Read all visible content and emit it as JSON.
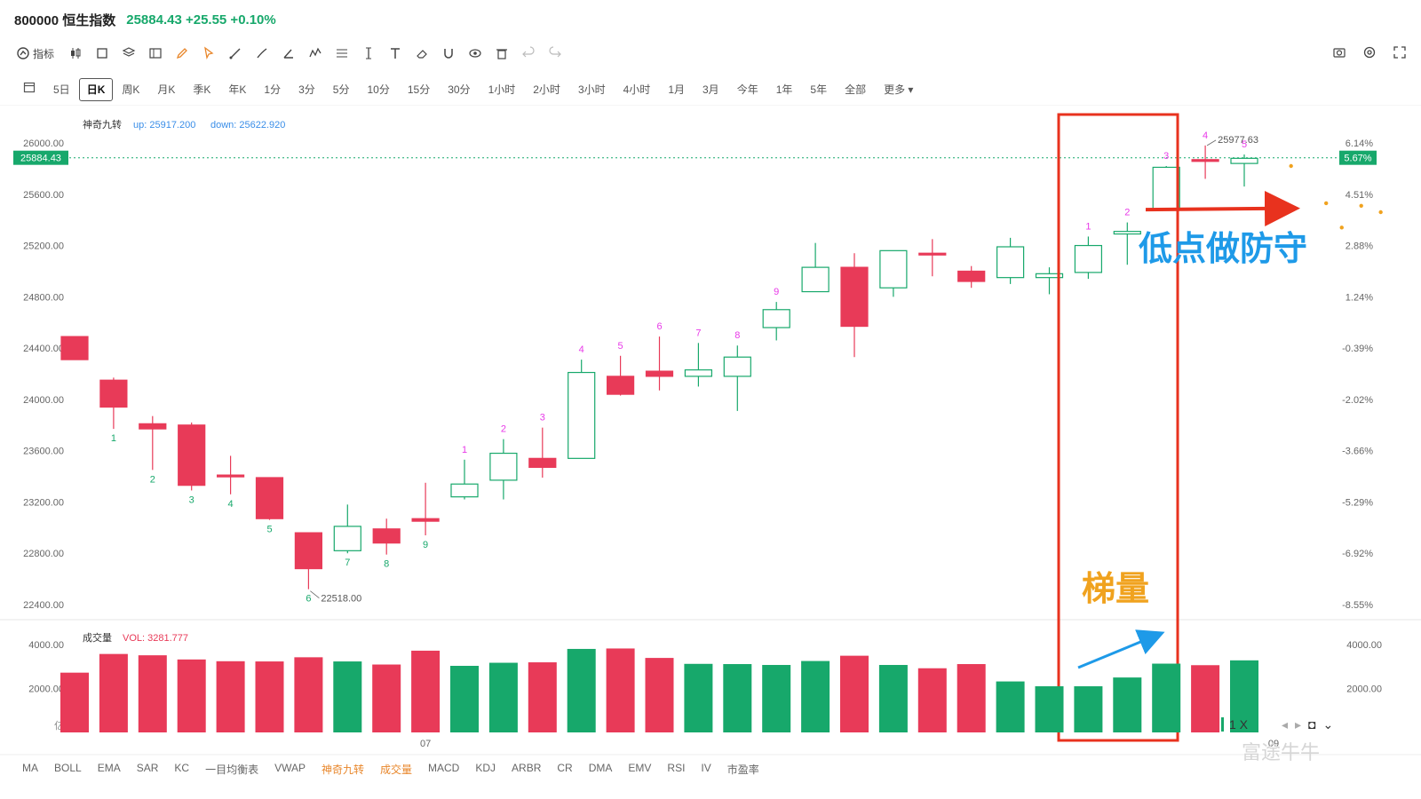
{
  "header": {
    "code_name": "800000 恒生指数",
    "price_change": "25884.43 +25.55 +0.10%"
  },
  "toolbar": {
    "indicator_label": "指标",
    "tools": [
      "candlestick-icon",
      "square-icon",
      "layers-icon",
      "layout-icon",
      "pencil-icon",
      "cursor-icon",
      "line-tool-icon",
      "brush-icon",
      "angle-tool-icon",
      "wave-tool-icon",
      "fib-tool-icon",
      "measure-tool-icon",
      "text-tool-icon",
      "eraser-icon",
      "magnet-icon",
      "eye-icon",
      "trash-icon",
      "undo-icon",
      "redo-icon"
    ],
    "right_tools": [
      "camera-icon",
      "settings-icon",
      "expand-icon"
    ]
  },
  "periods": [
    "5日",
    "日K",
    "周K",
    "月K",
    "季K",
    "年K",
    "1分",
    "3分",
    "5分",
    "10分",
    "15分",
    "30分",
    "1小时",
    "2小时",
    "3小时",
    "4小时",
    "1月",
    "3月",
    "今年",
    "1年",
    "5年",
    "全部",
    "更多"
  ],
  "active_period": "日K",
  "colors": {
    "up": "#17a86b",
    "down": "#e83a58",
    "magic": "#e83ae8",
    "red_box": "#e8321e",
    "blue_text": "#1e9ae8",
    "orange_text": "#f0a21e",
    "price_tag": "#17a86b"
  },
  "chart_data": {
    "type": "candlestick",
    "indicator_label": "神奇九转",
    "indicator_up": "up: 25917.200",
    "indicator_down": "down: 25622.920",
    "ylim": [
      22300,
      26120
    ],
    "y_ticks": [
      "26000.00",
      "25600.00",
      "25200.00",
      "24800.00",
      "24400.00",
      "24000.00",
      "23600.00",
      "23200.00",
      "22800.00",
      "22400.00"
    ],
    "y_tick_values": [
      26000,
      25600,
      25200,
      24800,
      24400,
      24000,
      23600,
      23200,
      22800,
      22400
    ],
    "pct_ticks": [
      "6.14%",
      "5.67%",
      "4.51%",
      "2.88%",
      "1.24%",
      "-0.39%",
      "-2.02%",
      "-3.66%",
      "-5.29%",
      "-6.92%",
      "-8.55%"
    ],
    "pct_tick_values": [
      26000,
      25884.43,
      25600,
      25200,
      24800,
      24400,
      24000,
      23600,
      23200,
      22800,
      22400
    ],
    "current_price_label": "25884.43",
    "current_price": 25884.43,
    "current_pct_label": "5.67%",
    "low_label": "22518.00",
    "high_label": "25977.63",
    "x_label": "07",
    "x_label_index": 9,
    "x_label_right": "09",
    "candles": [
      {
        "o": 24490,
        "c": 24310,
        "h": 24490,
        "l": 24310,
        "up": false,
        "n": ""
      },
      {
        "o": 24150,
        "c": 23940,
        "h": 24170,
        "l": 23770,
        "up": false,
        "n": "1",
        "pos": "below"
      },
      {
        "o": 23810,
        "c": 23770,
        "h": 23870,
        "l": 23450,
        "up": false,
        "n": "2",
        "pos": "below"
      },
      {
        "o": 23800,
        "c": 23330,
        "h": 23820,
        "l": 23290,
        "up": false,
        "n": "3",
        "pos": "below"
      },
      {
        "o": 23410,
        "c": 23410,
        "h": 23560,
        "l": 23260,
        "up": false,
        "n": "4",
        "pos": "below"
      },
      {
        "o": 23390,
        "c": 23070,
        "h": 23390,
        "l": 23060,
        "up": false,
        "n": "5",
        "pos": "below"
      },
      {
        "o": 22960,
        "c": 22680,
        "h": 22960,
        "l": 22520,
        "up": false,
        "n": "6",
        "pos": "below"
      },
      {
        "o": 22820,
        "c": 23010,
        "h": 23180,
        "l": 22800,
        "up": true,
        "n": "7",
        "pos": "below"
      },
      {
        "o": 22990,
        "c": 22880,
        "h": 23070,
        "l": 22790,
        "up": false,
        "n": "8",
        "pos": "below"
      },
      {
        "o": 23070,
        "c": 23050,
        "h": 23350,
        "l": 22940,
        "up": false,
        "n": "9",
        "pos": "below"
      },
      {
        "o": 23240,
        "c": 23340,
        "h": 23530,
        "l": 23220,
        "up": true,
        "n": "1",
        "pos": "above"
      },
      {
        "o": 23370,
        "c": 23580,
        "h": 23690,
        "l": 23220,
        "up": true,
        "n": "2",
        "pos": "above"
      },
      {
        "o": 23540,
        "c": 23470,
        "h": 23780,
        "l": 23390,
        "up": false,
        "n": "3",
        "pos": "above"
      },
      {
        "o": 23540,
        "c": 24210,
        "h": 24310,
        "l": 23540,
        "up": true,
        "n": "4",
        "pos": "above"
      },
      {
        "o": 24180,
        "c": 24040,
        "h": 24340,
        "l": 24030,
        "up": false,
        "n": "5",
        "pos": "above"
      },
      {
        "o": 24220,
        "c": 24180,
        "h": 24490,
        "l": 24070,
        "up": false,
        "n": "6",
        "pos": "above"
      },
      {
        "o": 24180,
        "c": 24230,
        "h": 24440,
        "l": 24100,
        "up": true,
        "n": "7",
        "pos": "above"
      },
      {
        "o": 24180,
        "c": 24330,
        "h": 24420,
        "l": 23910,
        "up": true,
        "n": "8",
        "pos": "above"
      },
      {
        "o": 24560,
        "c": 24700,
        "h": 24760,
        "l": 24460,
        "up": true,
        "n": "9",
        "pos": "above"
      },
      {
        "o": 24840,
        "c": 25030,
        "h": 25220,
        "l": 24840,
        "up": true,
        "n": ""
      },
      {
        "o": 25030,
        "c": 24570,
        "h": 25140,
        "l": 24330,
        "up": false,
        "n": ""
      },
      {
        "o": 24870,
        "c": 25160,
        "h": 25160,
        "l": 24800,
        "up": true,
        "n": ""
      },
      {
        "o": 25140,
        "c": 25130,
        "h": 25250,
        "l": 24960,
        "up": false,
        "n": ""
      },
      {
        "o": 25000,
        "c": 24920,
        "h": 25040,
        "l": 24870,
        "up": false,
        "n": ""
      },
      {
        "o": 24950,
        "c": 25190,
        "h": 25260,
        "l": 24900,
        "up": true,
        "n": ""
      },
      {
        "o": 24950,
        "c": 24980,
        "h": 25030,
        "l": 24820,
        "up": true,
        "n": ""
      },
      {
        "o": 24990,
        "c": 25200,
        "h": 25270,
        "l": 24940,
        "up": true,
        "n": "1",
        "pos": "above"
      },
      {
        "o": 25290,
        "c": 25310,
        "h": 25380,
        "l": 25050,
        "up": true,
        "n": "2",
        "pos": "above"
      },
      {
        "o": 25480,
        "c": 25810,
        "h": 25820,
        "l": 25480,
        "up": true,
        "n": "3",
        "pos": "above"
      },
      {
        "o": 25870,
        "c": 25860,
        "h": 25980,
        "l": 25720,
        "up": false,
        "n": "4",
        "pos": "above"
      },
      {
        "o": 25840,
        "c": 25880,
        "h": 25910,
        "l": 25660,
        "up": true,
        "n": "5",
        "pos": "above"
      }
    ],
    "forecast_points": [
      {
        "i": 31.2,
        "v": 25820
      },
      {
        "i": 32.1,
        "v": 25530
      },
      {
        "i": 32.5,
        "v": 25340
      },
      {
        "i": 33.0,
        "v": 25510
      },
      {
        "i": 33.5,
        "v": 25460
      }
    ],
    "volume": {
      "label": "成交量",
      "vol_label": "VOL: 3281.777",
      "ylim": [
        0,
        4600
      ],
      "y_ticks": [
        "4000.00",
        "2000.00"
      ],
      "y_tick_values": [
        4000,
        2000
      ],
      "unit_label": "亿",
      "values": [
        2720,
        3570,
        3510,
        3320,
        3240,
        3230,
        3420,
        3230,
        3090,
        3720,
        3030,
        3170,
        3190,
        3800,
        3820,
        3390,
        3120,
        3110,
        3070,
        3250,
        3490,
        3070,
        2920,
        3110,
        2320,
        2100,
        2100,
        2500,
        3130,
        3060,
        3280
      ],
      "up": [
        false,
        false,
        false,
        false,
        false,
        false,
        false,
        true,
        false,
        false,
        true,
        true,
        false,
        true,
        false,
        false,
        true,
        true,
        true,
        true,
        false,
        true,
        false,
        false,
        true,
        true,
        true,
        true,
        true,
        false,
        true
      ]
    },
    "annotations": {
      "defense_text": "低点做防守",
      "ladder_text": "梯量"
    }
  },
  "bottom_tabs": [
    "MA",
    "BOLL",
    "EMA",
    "SAR",
    "KC",
    "一目均衡表",
    "VWAP",
    "神奇九转",
    "成交量",
    "MACD",
    "KDJ",
    "ARBR",
    "CR",
    "DMA",
    "EMV",
    "RSI",
    "IV",
    "市盈率"
  ],
  "bottom_tabs_highlighted": [
    "神奇九转",
    "成交量"
  ],
  "zoom": {
    "value": "1 X"
  },
  "watermark": "富途牛牛"
}
